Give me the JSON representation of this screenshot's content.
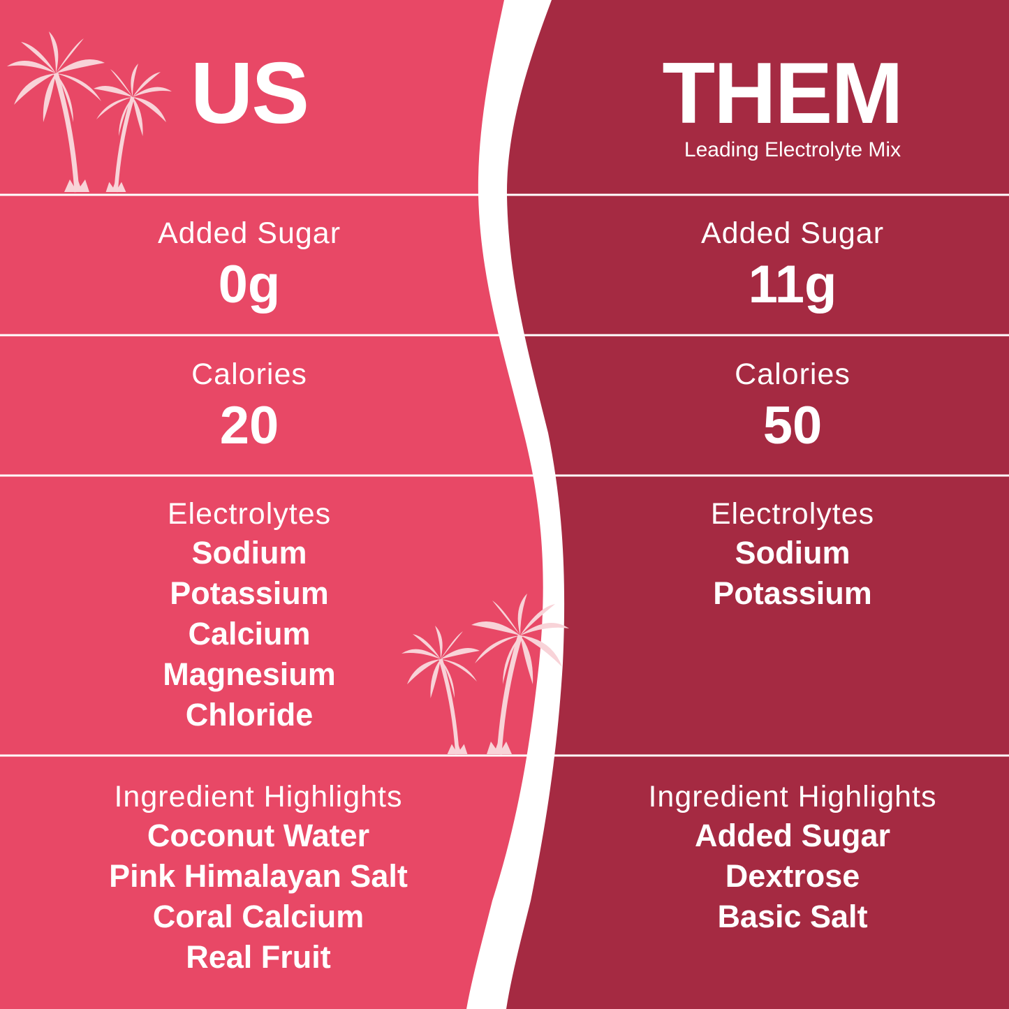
{
  "colors": {
    "us_bg": "#E84866",
    "them_bg": "#A52A42",
    "divider": "#FFFFFF",
    "palm": "#F8D3D8"
  },
  "us": {
    "title": "US",
    "added_sugar": {
      "label": "Added Sugar",
      "value": "0g"
    },
    "calories": {
      "label": "Calories",
      "value": "20"
    },
    "electrolytes": {
      "label": "Electrolytes",
      "items": [
        "Sodium",
        "Potassium",
        "Calcium",
        "Magnesium",
        "Chloride"
      ]
    },
    "ingredients": {
      "label": "Ingredient Highlights",
      "items": [
        "Coconut Water",
        "Pink Himalayan Salt",
        "Coral Calcium",
        "Real Fruit"
      ]
    }
  },
  "them": {
    "title": "THEM",
    "subtitle": "Leading Electrolyte Mix",
    "added_sugar": {
      "label": "Added Sugar",
      "value": "11g"
    },
    "calories": {
      "label": "Calories",
      "value": "50"
    },
    "electrolytes": {
      "label": "Electrolytes",
      "items": [
        "Sodium",
        "Potassium"
      ]
    },
    "ingredients": {
      "label": "Ingredient Highlights",
      "items": [
        "Added Sugar",
        "Dextrose",
        "Basic Salt"
      ]
    }
  },
  "icons": [
    "palm-tree-icon"
  ]
}
